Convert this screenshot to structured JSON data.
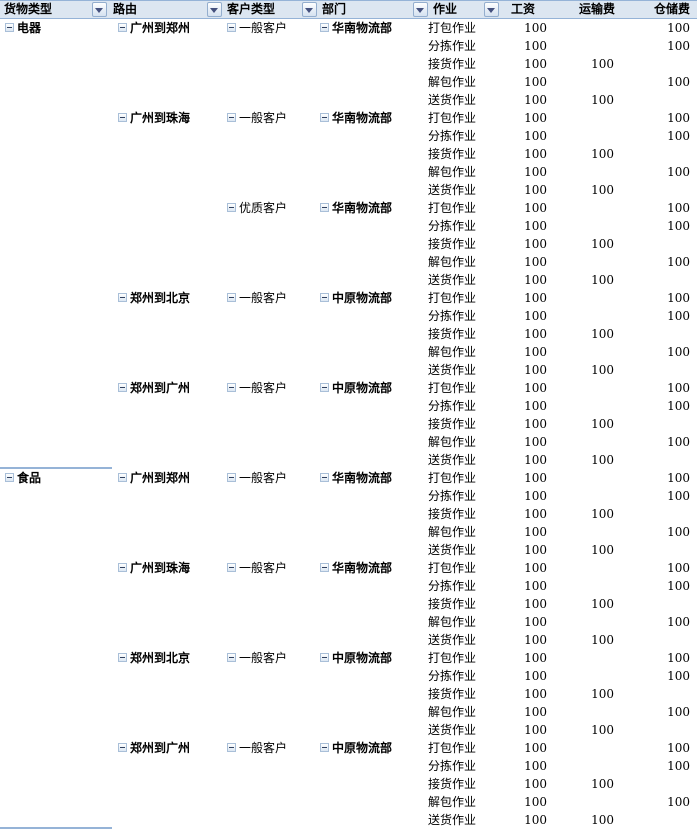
{
  "header": {
    "columns": [
      {
        "label": "货物类型",
        "has_filter": true
      },
      {
        "label": "路由",
        "has_filter": true
      },
      {
        "label": "客户类型",
        "has_filter": true
      },
      {
        "label": "部门",
        "has_filter": true
      },
      {
        "label": "作业",
        "has_filter": true
      },
      {
        "label": "工资",
        "has_filter": false
      },
      {
        "label": "运输费",
        "has_filter": false
      },
      {
        "label": "仓储费",
        "has_filter": false
      }
    ]
  },
  "pivot": {
    "groups": [
      {
        "goods": "电器",
        "route": "广州到郑州",
        "customer": "一般客户",
        "department": "华南物流部",
        "separator_above": false,
        "rows": [
          {
            "operation": "打包作业",
            "wage": "100",
            "transport": "",
            "storage": "100"
          },
          {
            "operation": "分拣作业",
            "wage": "100",
            "transport": "",
            "storage": "100"
          },
          {
            "operation": "接货作业",
            "wage": "100",
            "transport": "100",
            "storage": ""
          },
          {
            "operation": "解包作业",
            "wage": "100",
            "transport": "",
            "storage": "100"
          },
          {
            "operation": "送货作业",
            "wage": "100",
            "transport": "100",
            "storage": ""
          }
        ]
      },
      {
        "goods": "",
        "route": "广州到珠海",
        "customer": "一般客户",
        "department": "华南物流部",
        "separator_above": false,
        "rows": [
          {
            "operation": "打包作业",
            "wage": "100",
            "transport": "",
            "storage": "100"
          },
          {
            "operation": "分拣作业",
            "wage": "100",
            "transport": "",
            "storage": "100"
          },
          {
            "operation": "接货作业",
            "wage": "100",
            "transport": "100",
            "storage": ""
          },
          {
            "operation": "解包作业",
            "wage": "100",
            "transport": "",
            "storage": "100"
          },
          {
            "operation": "送货作业",
            "wage": "100",
            "transport": "100",
            "storage": ""
          }
        ]
      },
      {
        "goods": "",
        "route": "",
        "customer": "优质客户",
        "department": "华南物流部",
        "separator_above": false,
        "rows": [
          {
            "operation": "打包作业",
            "wage": "100",
            "transport": "",
            "storage": "100"
          },
          {
            "operation": "分拣作业",
            "wage": "100",
            "transport": "",
            "storage": "100"
          },
          {
            "operation": "接货作业",
            "wage": "100",
            "transport": "100",
            "storage": ""
          },
          {
            "operation": "解包作业",
            "wage": "100",
            "transport": "",
            "storage": "100"
          },
          {
            "operation": "送货作业",
            "wage": "100",
            "transport": "100",
            "storage": ""
          }
        ]
      },
      {
        "goods": "",
        "route": "郑州到北京",
        "customer": "一般客户",
        "department": "中原物流部",
        "separator_above": false,
        "rows": [
          {
            "operation": "打包作业",
            "wage": "100",
            "transport": "",
            "storage": "100"
          },
          {
            "operation": "分拣作业",
            "wage": "100",
            "transport": "",
            "storage": "100"
          },
          {
            "operation": "接货作业",
            "wage": "100",
            "transport": "100",
            "storage": ""
          },
          {
            "operation": "解包作业",
            "wage": "100",
            "transport": "",
            "storage": "100"
          },
          {
            "operation": "送货作业",
            "wage": "100",
            "transport": "100",
            "storage": ""
          }
        ]
      },
      {
        "goods": "",
        "route": "郑州到广州",
        "customer": "一般客户",
        "department": "中原物流部",
        "separator_above": false,
        "rows": [
          {
            "operation": "打包作业",
            "wage": "100",
            "transport": "",
            "storage": "100"
          },
          {
            "operation": "分拣作业",
            "wage": "100",
            "transport": "",
            "storage": "100"
          },
          {
            "operation": "接货作业",
            "wage": "100",
            "transport": "100",
            "storage": ""
          },
          {
            "operation": "解包作业",
            "wage": "100",
            "transport": "",
            "storage": "100"
          },
          {
            "operation": "送货作业",
            "wage": "100",
            "transport": "100",
            "storage": ""
          }
        ]
      },
      {
        "goods": "食品",
        "route": "广州到郑州",
        "customer": "一般客户",
        "department": "华南物流部",
        "separator_above": true,
        "rows": [
          {
            "operation": "打包作业",
            "wage": "100",
            "transport": "",
            "storage": "100"
          },
          {
            "operation": "分拣作业",
            "wage": "100",
            "transport": "",
            "storage": "100"
          },
          {
            "operation": "接货作业",
            "wage": "100",
            "transport": "100",
            "storage": ""
          },
          {
            "operation": "解包作业",
            "wage": "100",
            "transport": "",
            "storage": "100"
          },
          {
            "operation": "送货作业",
            "wage": "100",
            "transport": "100",
            "storage": ""
          }
        ]
      },
      {
        "goods": "",
        "route": "广州到珠海",
        "customer": "一般客户",
        "department": "华南物流部",
        "separator_above": false,
        "rows": [
          {
            "operation": "打包作业",
            "wage": "100",
            "transport": "",
            "storage": "100"
          },
          {
            "operation": "分拣作业",
            "wage": "100",
            "transport": "",
            "storage": "100"
          },
          {
            "operation": "接货作业",
            "wage": "100",
            "transport": "100",
            "storage": ""
          },
          {
            "operation": "解包作业",
            "wage": "100",
            "transport": "",
            "storage": "100"
          },
          {
            "operation": "送货作业",
            "wage": "100",
            "transport": "100",
            "storage": ""
          }
        ]
      },
      {
        "goods": "",
        "route": "郑州到北京",
        "customer": "一般客户",
        "department": "中原物流部",
        "separator_above": false,
        "rows": [
          {
            "operation": "打包作业",
            "wage": "100",
            "transport": "",
            "storage": "100"
          },
          {
            "operation": "分拣作业",
            "wage": "100",
            "transport": "",
            "storage": "100"
          },
          {
            "operation": "接货作业",
            "wage": "100",
            "transport": "100",
            "storage": ""
          },
          {
            "operation": "解包作业",
            "wage": "100",
            "transport": "",
            "storage": "100"
          },
          {
            "operation": "送货作业",
            "wage": "100",
            "transport": "100",
            "storage": ""
          }
        ]
      },
      {
        "goods": "",
        "route": "郑州到广州",
        "customer": "一般客户",
        "department": "中原物流部",
        "separator_above": false,
        "rows": [
          {
            "operation": "打包作业",
            "wage": "100",
            "transport": "",
            "storage": "100"
          },
          {
            "operation": "分拣作业",
            "wage": "100",
            "transport": "",
            "storage": "100"
          },
          {
            "operation": "接货作业",
            "wage": "100",
            "transport": "100",
            "storage": ""
          },
          {
            "operation": "解包作业",
            "wage": "100",
            "transport": "",
            "storage": "100"
          },
          {
            "operation": "送货作业",
            "wage": "100",
            "transport": "100",
            "storage": ""
          }
        ]
      }
    ],
    "bottom_separator": true
  },
  "colors": {
    "header_bg": "#DCE6F1",
    "border_blue": "#95B3D7",
    "button_border": "#94AECE",
    "box_border": "#A9BFD8",
    "arrow_color": "#44517E"
  }
}
